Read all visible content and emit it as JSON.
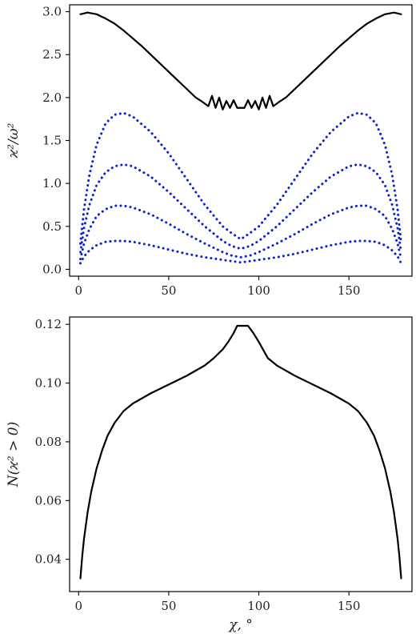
{
  "chart_data": [
    {
      "type": "line",
      "xlabel": "",
      "ylabel": "ϰ²/ω²",
      "xlim": [
        -5,
        185
      ],
      "ylim": [
        -0.08,
        3.08
      ],
      "xticks": [
        0,
        50,
        100,
        150
      ],
      "xtick_labels": [
        "0",
        "50",
        "100",
        "150"
      ],
      "yticks": [
        0.0,
        0.5,
        1.0,
        1.5,
        2.0,
        2.5,
        3.0
      ],
      "ytick_labels": [
        "0.0",
        "0.5",
        "1.0",
        "1.5",
        "2.0",
        "2.5",
        "3.0"
      ],
      "grid": false,
      "series": [
        {
          "style": "solid",
          "color": "#000000",
          "x": [
            1,
            5,
            10,
            15,
            20,
            25,
            30,
            35,
            40,
            45,
            50,
            55,
            60,
            65,
            68,
            70,
            72,
            74,
            76,
            78,
            80,
            82,
            84,
            86,
            88,
            90,
            92,
            94,
            96,
            98,
            100,
            102,
            104,
            106,
            108,
            110,
            112,
            115,
            120,
            125,
            130,
            135,
            140,
            145,
            150,
            155,
            160,
            165,
            170,
            175,
            179
          ],
          "y": [
            2.97,
            2.99,
            2.97,
            2.92,
            2.86,
            2.78,
            2.69,
            2.6,
            2.5,
            2.4,
            2.3,
            2.2,
            2.1,
            2.0,
            1.96,
            1.93,
            1.9,
            2.02,
            1.88,
            2.0,
            1.86,
            1.96,
            1.88,
            1.97,
            1.88,
            1.88,
            1.88,
            1.97,
            1.88,
            1.96,
            1.86,
            2.0,
            1.88,
            2.02,
            1.9,
            1.93,
            1.96,
            2.0,
            2.1,
            2.2,
            2.3,
            2.4,
            2.5,
            2.6,
            2.69,
            2.78,
            2.86,
            2.92,
            2.97,
            2.99,
            2.97
          ]
        },
        {
          "style": "dotted",
          "color": "#0b1fd6",
          "x": [
            1,
            3,
            6,
            10,
            15,
            20,
            25,
            30,
            40,
            50,
            60,
            70,
            80,
            85,
            90,
            95,
            100,
            110,
            120,
            130,
            140,
            150,
            155,
            160,
            165,
            170,
            174,
            177,
            179
          ],
          "y": [
            0.3,
            0.7,
            1.1,
            1.45,
            1.7,
            1.8,
            1.82,
            1.78,
            1.6,
            1.35,
            1.05,
            0.75,
            0.5,
            0.42,
            0.35,
            0.42,
            0.5,
            0.75,
            1.05,
            1.35,
            1.6,
            1.78,
            1.82,
            1.8,
            1.7,
            1.45,
            1.1,
            0.7,
            0.3
          ]
        },
        {
          "style": "dotted",
          "color": "#0b1fd6",
          "x": [
            1,
            3,
            6,
            10,
            15,
            20,
            25,
            30,
            40,
            50,
            60,
            70,
            80,
            85,
            90,
            95,
            100,
            110,
            120,
            130,
            140,
            150,
            155,
            160,
            165,
            170,
            174,
            177,
            179
          ],
          "y": [
            0.2,
            0.48,
            0.75,
            0.98,
            1.13,
            1.2,
            1.22,
            1.2,
            1.08,
            0.9,
            0.7,
            0.5,
            0.33,
            0.27,
            0.24,
            0.27,
            0.33,
            0.5,
            0.7,
            0.9,
            1.08,
            1.2,
            1.22,
            1.2,
            1.13,
            0.98,
            0.75,
            0.48,
            0.2
          ]
        },
        {
          "style": "dotted",
          "color": "#0b1fd6",
          "x": [
            1,
            3,
            6,
            10,
            15,
            20,
            25,
            30,
            40,
            50,
            60,
            70,
            80,
            85,
            90,
            95,
            100,
            110,
            120,
            130,
            140,
            150,
            155,
            160,
            165,
            170,
            174,
            177,
            179
          ],
          "y": [
            0.12,
            0.3,
            0.47,
            0.62,
            0.7,
            0.74,
            0.74,
            0.72,
            0.64,
            0.53,
            0.41,
            0.3,
            0.2,
            0.16,
            0.14,
            0.16,
            0.2,
            0.3,
            0.41,
            0.53,
            0.64,
            0.72,
            0.74,
            0.74,
            0.7,
            0.62,
            0.47,
            0.3,
            0.12
          ]
        },
        {
          "style": "dotted",
          "color": "#0b1fd6",
          "x": [
            1,
            3,
            6,
            10,
            15,
            20,
            25,
            30,
            40,
            50,
            60,
            70,
            80,
            85,
            90,
            95,
            100,
            110,
            120,
            130,
            140,
            150,
            155,
            160,
            165,
            170,
            174,
            177,
            179
          ],
          "y": [
            0.07,
            0.15,
            0.22,
            0.28,
            0.32,
            0.33,
            0.33,
            0.32,
            0.28,
            0.23,
            0.18,
            0.14,
            0.11,
            0.095,
            0.08,
            0.095,
            0.11,
            0.14,
            0.18,
            0.23,
            0.28,
            0.32,
            0.33,
            0.33,
            0.32,
            0.28,
            0.22,
            0.15,
            0.07
          ]
        }
      ]
    },
    {
      "type": "line",
      "xlabel": "χ, °",
      "ylabel": "N(ϰ² > 0)",
      "xlim": [
        -5,
        185
      ],
      "ylim": [
        0.029,
        0.1225
      ],
      "xticks": [
        0,
        50,
        100,
        150
      ],
      "xtick_labels": [
        "0",
        "50",
        "100",
        "150"
      ],
      "yticks": [
        0.04,
        0.06,
        0.08,
        0.1,
        0.12
      ],
      "ytick_labels": [
        "0.04",
        "0.06",
        "0.08",
        "0.10",
        "0.12"
      ],
      "grid": false,
      "series": [
        {
          "style": "solid",
          "color": "#000000",
          "x": [
            1,
            2,
            3,
            5,
            7,
            10,
            13,
            16,
            20,
            25,
            30,
            40,
            50,
            60,
            70,
            75,
            80,
            83,
            86,
            88,
            90,
            92,
            94,
            97,
            100,
            105,
            110,
            120,
            130,
            140,
            150,
            155,
            160,
            164,
            167,
            170,
            173,
            175,
            177,
            178,
            179
          ],
          "y": [
            0.0335,
            0.041,
            0.047,
            0.056,
            0.063,
            0.071,
            0.077,
            0.082,
            0.0865,
            0.0905,
            0.093,
            0.0965,
            0.0995,
            0.1025,
            0.106,
            0.1085,
            0.1115,
            0.114,
            0.117,
            0.1195,
            0.1195,
            0.1195,
            0.1195,
            0.117,
            0.114,
            0.1085,
            0.106,
            0.1025,
            0.0995,
            0.0965,
            0.093,
            0.0905,
            0.0865,
            0.082,
            0.077,
            0.071,
            0.063,
            0.056,
            0.047,
            0.041,
            0.0335
          ]
        }
      ]
    }
  ]
}
